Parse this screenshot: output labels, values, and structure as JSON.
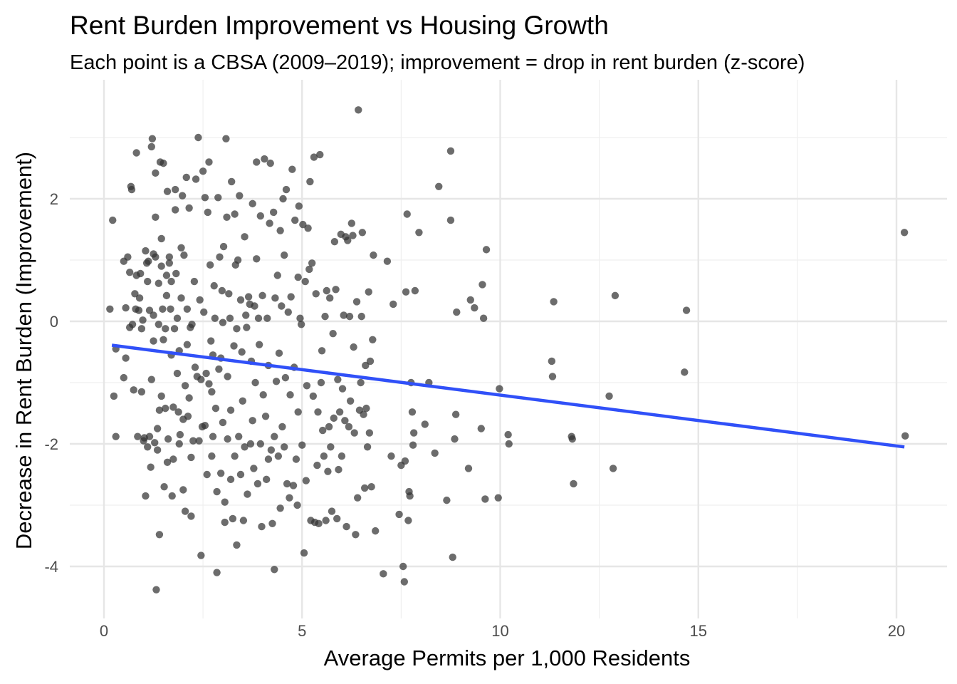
{
  "chart_data": {
    "type": "scatter",
    "title": "Rent Burden Improvement vs Housing Growth",
    "subtitle": "Each point is a CBSA (2009–2019); improvement = drop in rent burden (z-score)",
    "xlabel": "Average Permits per 1,000 Residents",
    "ylabel": "Decrease in Rent Burden (Improvement)",
    "xlim": [
      -0.6,
      21.0
    ],
    "ylim": [
      -4.75,
      3.8
    ],
    "x_ticks": [
      0,
      5,
      10,
      15,
      20
    ],
    "x_tick_labels": [
      "0",
      "5",
      "10",
      "15",
      "20"
    ],
    "y_ticks": [
      -4,
      -2,
      0,
      2
    ],
    "y_tick_labels": [
      "-4",
      "-2",
      "0",
      "2"
    ],
    "grid": true,
    "point_color": "#333333",
    "trend_color": "#3050f8",
    "trend_line": {
      "x": [
        0.2,
        20.2
      ],
      "y": [
        -0.39,
        -2.05
      ]
    },
    "points": [
      [
        0.15,
        0.2
      ],
      [
        0.22,
        1.65
      ],
      [
        0.25,
        -1.22
      ],
      [
        0.3,
        -0.45
      ],
      [
        0.3,
        -1.88
      ],
      [
        0.5,
        -0.92
      ],
      [
        0.5,
        0.98
      ],
      [
        0.55,
        0.22
      ],
      [
        0.55,
        -0.6
      ],
      [
        0.6,
        1.05
      ],
      [
        0.65,
        -0.1
      ],
      [
        0.65,
        0.8
      ],
      [
        0.68,
        2.2
      ],
      [
        0.7,
        2.15
      ],
      [
        0.72,
        -0.05
      ],
      [
        0.75,
        -1.12
      ],
      [
        0.78,
        0.45
      ],
      [
        0.8,
        0.2
      ],
      [
        0.82,
        0.75
      ],
      [
        0.82,
        2.75
      ],
      [
        0.85,
        -1.88
      ],
      [
        0.88,
        0.18
      ],
      [
        0.9,
        0.38
      ],
      [
        0.92,
        0.78
      ],
      [
        0.95,
        -0.12
      ],
      [
        0.95,
        -1.15
      ],
      [
        0.98,
        0.02
      ],
      [
        1.0,
        -1.95
      ],
      [
        1.02,
        -1.9
      ],
      [
        1.05,
        1.15
      ],
      [
        1.05,
        -2.85
      ],
      [
        1.08,
        0.95
      ],
      [
        1.1,
        0.65
      ],
      [
        1.1,
        -2.05
      ],
      [
        1.12,
        0.98
      ],
      [
        1.15,
        0.18
      ],
      [
        1.15,
        -1.88
      ],
      [
        1.18,
        -2.38
      ],
      [
        1.2,
        -0.95
      ],
      [
        1.2,
        2.85
      ],
      [
        1.22,
        2.98
      ],
      [
        1.25,
        0.1
      ],
      [
        1.25,
        1.1
      ],
      [
        1.25,
        -0.32
      ],
      [
        1.28,
        -1.98
      ],
      [
        1.3,
        1.05
      ],
      [
        1.3,
        2.42
      ],
      [
        1.3,
        1.7
      ],
      [
        1.32,
        -4.38
      ],
      [
        1.35,
        -2.1
      ],
      [
        1.35,
        -1.75
      ],
      [
        1.38,
        -0.05
      ],
      [
        1.38,
        0.62
      ],
      [
        1.4,
        -1.45
      ],
      [
        1.4,
        -3.48
      ],
      [
        1.42,
        2.6
      ],
      [
        1.45,
        1.35
      ],
      [
        1.45,
        0.9
      ],
      [
        1.45,
        -1.22
      ],
      [
        1.48,
        0.2
      ],
      [
        1.5,
        2.58
      ],
      [
        1.5,
        -0.3
      ],
      [
        1.52,
        -2.7
      ],
      [
        1.55,
        -1.42
      ],
      [
        1.55,
        -0.12
      ],
      [
        1.58,
        0.75
      ],
      [
        1.58,
        0.42
      ],
      [
        1.6,
        -2.3
      ],
      [
        1.6,
        2.12
      ],
      [
        1.62,
        -1.92
      ],
      [
        1.65,
        1.05
      ],
      [
        1.65,
        0.95
      ],
      [
        1.68,
        0.2
      ],
      [
        1.7,
        -0.55
      ],
      [
        1.7,
        0.65
      ],
      [
        1.72,
        -2.85
      ],
      [
        1.75,
        -1.4
      ],
      [
        1.75,
        -2.25
      ],
      [
        1.78,
        -0.12
      ],
      [
        1.8,
        2.15
      ],
      [
        1.8,
        1.82
      ],
      [
        1.82,
        0.78
      ],
      [
        1.85,
        0.05
      ],
      [
        1.85,
        -0.85
      ],
      [
        1.88,
        -1.48
      ],
      [
        1.9,
        -2.0
      ],
      [
        1.9,
        -0.48
      ],
      [
        1.92,
        -1.85
      ],
      [
        1.95,
        1.2
      ],
      [
        1.95,
        0.38
      ],
      [
        1.98,
        2.05
      ],
      [
        2.0,
        -1.6
      ],
      [
        2.0,
        -2.75
      ],
      [
        2.02,
        1.08
      ],
      [
        2.05,
        -1.05
      ],
      [
        2.05,
        -3.1
      ],
      [
        2.08,
        2.35
      ],
      [
        2.1,
        0.2
      ],
      [
        2.1,
        -0.38
      ],
      [
        2.12,
        -1.55
      ],
      [
        2.15,
        1.85
      ],
      [
        2.15,
        -1.25
      ],
      [
        2.18,
        -0.1
      ],
      [
        2.2,
        -2.22
      ],
      [
        2.2,
        -3.18
      ],
      [
        2.22,
        -0.05
      ],
      [
        2.25,
        -1.95
      ],
      [
        2.28,
        0.65
      ],
      [
        2.3,
        -0.75
      ],
      [
        2.32,
        2.32
      ],
      [
        2.35,
        -0.9
      ],
      [
        2.38,
        3.0
      ],
      [
        2.4,
        -1.95
      ],
      [
        2.42,
        0.35
      ],
      [
        2.45,
        -0.95
      ],
      [
        2.45,
        -3.82
      ],
      [
        2.48,
        -1.72
      ],
      [
        2.5,
        2.45
      ],
      [
        2.52,
        0.15
      ],
      [
        2.55,
        -1.7
      ],
      [
        2.55,
        2.02
      ],
      [
        2.58,
        -0.85
      ],
      [
        2.6,
        -2.5
      ],
      [
        2.62,
        1.78
      ],
      [
        2.65,
        2.6
      ],
      [
        2.65,
        -1.02
      ],
      [
        2.68,
        0.92
      ],
      [
        2.7,
        -0.32
      ],
      [
        2.72,
        -2.2
      ],
      [
        2.72,
        -1.15
      ],
      [
        2.75,
        -0.55
      ],
      [
        2.75,
        -1.88
      ],
      [
        2.78,
        0.58
      ],
      [
        2.8,
        0.05
      ],
      [
        2.82,
        -1.42
      ],
      [
        2.85,
        -2.78
      ],
      [
        2.85,
        -4.1
      ],
      [
        2.88,
        2.02
      ],
      [
        2.9,
        -0.78
      ],
      [
        2.92,
        1.05
      ],
      [
        2.95,
        -2.48
      ],
      [
        2.95,
        -0.6
      ],
      [
        2.98,
        0.5
      ],
      [
        3.0,
        -1.65
      ],
      [
        3.0,
        -0.02
      ],
      [
        3.02,
        1.22
      ],
      [
        3.05,
        -2.95
      ],
      [
        3.05,
        -3.28
      ],
      [
        3.08,
        2.98
      ],
      [
        3.1,
        1.7
      ],
      [
        3.12,
        -1.92
      ],
      [
        3.12,
        -0.9
      ],
      [
        3.15,
        0.45
      ],
      [
        3.18,
        0.05
      ],
      [
        3.2,
        -1.45
      ],
      [
        3.2,
        -2.58
      ],
      [
        3.22,
        2.28
      ],
      [
        3.25,
        -3.22
      ],
      [
        3.28,
        -0.4
      ],
      [
        3.3,
        -2.2
      ],
      [
        3.3,
        1.75
      ],
      [
        3.32,
        0.92
      ],
      [
        3.35,
        -3.65
      ],
      [
        3.35,
        -0.12
      ],
      [
        3.38,
        1.0
      ],
      [
        3.4,
        -1.88
      ],
      [
        3.42,
        2.05
      ],
      [
        3.45,
        -2.5
      ],
      [
        3.45,
        0.35
      ],
      [
        3.48,
        -0.5
      ],
      [
        3.5,
        -1.3
      ],
      [
        3.52,
        -3.25
      ],
      [
        3.55,
        1.38
      ],
      [
        3.55,
        -2.05
      ],
      [
        3.58,
        0.1
      ],
      [
        3.6,
        -0.1
      ],
      [
        3.62,
        -2.82
      ],
      [
        3.65,
        0.4
      ],
      [
        3.68,
        0.28
      ],
      [
        3.7,
        -2.0
      ],
      [
        3.72,
        -0.65
      ],
      [
        3.75,
        1.92
      ],
      [
        3.75,
        -1.62
      ],
      [
        3.78,
        -2.4
      ],
      [
        3.8,
        0.25
      ],
      [
        3.82,
        -1.0
      ],
      [
        3.85,
        1.02
      ],
      [
        3.85,
        2.6
      ],
      [
        3.88,
        -2.65
      ],
      [
        3.9,
        0.05
      ],
      [
        3.92,
        -0.38
      ],
      [
        3.95,
        -2.0
      ],
      [
        3.95,
        1.72
      ],
      [
        3.98,
        -3.35
      ],
      [
        4.0,
        0.42
      ],
      [
        4.02,
        -1.2
      ],
      [
        4.05,
        2.65
      ],
      [
        4.08,
        -1.55
      ],
      [
        4.1,
        -2.58
      ],
      [
        4.12,
        0.05
      ],
      [
        4.15,
        -2.25
      ],
      [
        4.15,
        -0.72
      ],
      [
        4.18,
        1.6
      ],
      [
        4.2,
        2.58
      ],
      [
        4.22,
        -2.1
      ],
      [
        4.25,
        -3.3
      ],
      [
        4.28,
        1.78
      ],
      [
        4.3,
        -1.88
      ],
      [
        4.3,
        -4.05
      ],
      [
        4.32,
        0.38
      ],
      [
        4.35,
        -0.98
      ],
      [
        4.38,
        0.75
      ],
      [
        4.4,
        -2.2
      ],
      [
        4.42,
        -0.52
      ],
      [
        4.45,
        -3.05
      ],
      [
        4.45,
        1.48
      ],
      [
        4.48,
        0.25
      ],
      [
        4.5,
        -1.72
      ],
      [
        4.52,
        2.0
      ],
      [
        4.55,
        -2.05
      ],
      [
        4.55,
        1.08
      ],
      [
        4.58,
        -0.92
      ],
      [
        4.6,
        2.15
      ],
      [
        4.62,
        -2.65
      ],
      [
        4.65,
        0.15
      ],
      [
        4.68,
        -2.88
      ],
      [
        4.7,
        -1.2
      ],
      [
        4.72,
        0.4
      ],
      [
        4.75,
        2.48
      ],
      [
        4.78,
        -2.68
      ],
      [
        4.8,
        -0.75
      ],
      [
        4.82,
        1.65
      ],
      [
        4.85,
        -2.25
      ],
      [
        4.88,
        -3.0
      ],
      [
        4.9,
        0.72
      ],
      [
        4.9,
        -1.48
      ],
      [
        4.92,
        1.88
      ],
      [
        4.95,
        0.05
      ],
      [
        4.98,
        -0.05
      ],
      [
        5.0,
        -2.02
      ],
      [
        5.02,
        1.58
      ],
      [
        5.05,
        -3.78
      ],
      [
        5.08,
        0.65
      ],
      [
        5.1,
        -2.6
      ],
      [
        5.12,
        -1.05
      ],
      [
        5.15,
        1.52
      ],
      [
        5.18,
        0.85
      ],
      [
        5.2,
        2.28
      ],
      [
        5.22,
        -3.25
      ],
      [
        5.25,
        0.95
      ],
      [
        5.28,
        -1.22
      ],
      [
        5.3,
        2.68
      ],
      [
        5.32,
        -3.28
      ],
      [
        5.35,
        0.45
      ],
      [
        5.38,
        -2.35
      ],
      [
        5.4,
        -1.48
      ],
      [
        5.42,
        -3.3
      ],
      [
        5.45,
        2.72
      ],
      [
        5.48,
        -1.0
      ],
      [
        5.5,
        -0.48
      ],
      [
        5.52,
        -1.78
      ],
      [
        5.55,
        -2.2
      ],
      [
        5.58,
        0.08
      ],
      [
        5.6,
        -3.25
      ],
      [
        5.62,
        0.5
      ],
      [
        5.65,
        -2.45
      ],
      [
        5.68,
        -1.72
      ],
      [
        5.7,
        0.38
      ],
      [
        5.72,
        -2.05
      ],
      [
        5.75,
        -3.1
      ],
      [
        5.78,
        -0.2
      ],
      [
        5.8,
        -1.58
      ],
      [
        5.82,
        1.3
      ],
      [
        5.85,
        0.52
      ],
      [
        5.88,
        -3.22
      ],
      [
        5.9,
        -0.95
      ],
      [
        5.92,
        -2.42
      ],
      [
        5.95,
        -1.48
      ],
      [
        5.98,
        1.42
      ],
      [
        6.0,
        -2.2
      ],
      [
        6.02,
        -1.1
      ],
      [
        6.05,
        0.1
      ],
      [
        6.08,
        -1.62
      ],
      [
        6.1,
        1.38
      ],
      [
        6.12,
        -3.35
      ],
      [
        6.15,
        1.32
      ],
      [
        6.18,
        -1.72
      ],
      [
        6.2,
        0.08
      ],
      [
        6.22,
        -1.3
      ],
      [
        6.25,
        1.6
      ],
      [
        6.28,
        1.4
      ],
      [
        6.3,
        -0.42
      ],
      [
        6.32,
        -1.82
      ],
      [
        6.35,
        -3.48
      ],
      [
        6.38,
        0.32
      ],
      [
        6.4,
        -2.88
      ],
      [
        6.42,
        3.45
      ],
      [
        6.45,
        -1.45
      ],
      [
        6.48,
        -1.0
      ],
      [
        6.5,
        0.08
      ],
      [
        6.52,
        1.45
      ],
      [
        6.55,
        -1.52
      ],
      [
        6.58,
        -2.72
      ],
      [
        6.6,
        -0.72
      ],
      [
        6.62,
        -1.42
      ],
      [
        6.65,
        -2.05
      ],
      [
        6.68,
        0.48
      ],
      [
        6.7,
        -1.82
      ],
      [
        6.72,
        -0.65
      ],
      [
        6.75,
        -2.7
      ],
      [
        6.78,
        -0.3
      ],
      [
        6.8,
        1.08
      ],
      [
        6.85,
        -3.42
      ],
      [
        7.05,
        -4.12
      ],
      [
        7.15,
        0.98
      ],
      [
        7.25,
        -2.2
      ],
      [
        7.3,
        0.28
      ],
      [
        7.45,
        -3.15
      ],
      [
        7.5,
        -2.35
      ],
      [
        7.55,
        -4.0
      ],
      [
        7.58,
        -4.25
      ],
      [
        7.6,
        -2.28
      ],
      [
        7.62,
        0.48
      ],
      [
        7.65,
        1.75
      ],
      [
        7.68,
        -3.25
      ],
      [
        7.7,
        -2.78
      ],
      [
        7.72,
        -2.85
      ],
      [
        7.75,
        -1.0
      ],
      [
        7.78,
        -1.48
      ],
      [
        7.8,
        -2.02
      ],
      [
        7.82,
        -1.82
      ],
      [
        7.85,
        0.5
      ],
      [
        7.95,
        1.45
      ],
      [
        8.1,
        -1.68
      ],
      [
        8.2,
        -1.0
      ],
      [
        8.35,
        -2.15
      ],
      [
        8.45,
        2.2
      ],
      [
        8.65,
        -2.92
      ],
      [
        8.75,
        1.65
      ],
      [
        8.75,
        2.78
      ],
      [
        8.8,
        -3.85
      ],
      [
        8.85,
        -1.92
      ],
      [
        8.88,
        -1.52
      ],
      [
        8.9,
        0.15
      ],
      [
        9.2,
        -2.4
      ],
      [
        9.25,
        0.35
      ],
      [
        9.35,
        0.22
      ],
      [
        9.52,
        -1.75
      ],
      [
        9.55,
        0.6
      ],
      [
        9.58,
        0.05
      ],
      [
        9.62,
        -2.9
      ],
      [
        9.65,
        1.17
      ],
      [
        9.95,
        -2.88
      ],
      [
        9.98,
        -1.1
      ],
      [
        10.2,
        -1.85
      ],
      [
        10.22,
        -2.0
      ],
      [
        11.3,
        -0.65
      ],
      [
        11.32,
        -0.9
      ],
      [
        11.35,
        0.32
      ],
      [
        11.8,
        -1.88
      ],
      [
        11.82,
        -1.92
      ],
      [
        11.85,
        -2.65
      ],
      [
        12.75,
        -1.22
      ],
      [
        12.85,
        -2.4
      ],
      [
        12.9,
        0.42
      ],
      [
        14.65,
        -0.83
      ],
      [
        14.7,
        0.18
      ],
      [
        20.2,
        1.45
      ],
      [
        20.22,
        -1.87
      ]
    ]
  }
}
